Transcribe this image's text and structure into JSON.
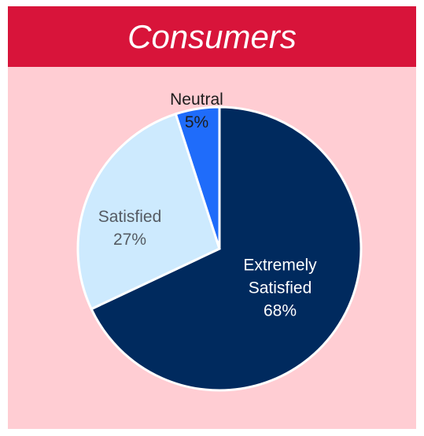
{
  "chart_data": {
    "type": "pie",
    "title": "Consumers",
    "categories": [
      "Extremely Satisfied",
      "Satisfied",
      "Neutral"
    ],
    "values": [
      68,
      27,
      5
    ],
    "value_labels": [
      "68%",
      "27%",
      "5%"
    ],
    "colors": [
      "#002a5e",
      "#cdeafe",
      "#1f6cfa"
    ]
  }
}
